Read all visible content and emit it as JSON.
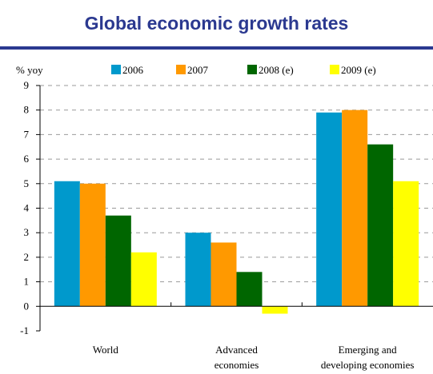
{
  "chart_data": {
    "type": "bar",
    "title": "Global economic growth rates",
    "ylabel": "% yoy",
    "xlabel": "",
    "ylim": [
      -1,
      9
    ],
    "yticks": [
      -1,
      0,
      1,
      2,
      3,
      4,
      5,
      6,
      7,
      8,
      9
    ],
    "grid": true,
    "legend_position": "top",
    "categories": [
      [
        "World"
      ],
      [
        "Advanced",
        "economies"
      ],
      [
        "Emerging and",
        "developing economies"
      ]
    ],
    "series": [
      {
        "name": "2006",
        "color": "#0099cc",
        "values": [
          5.1,
          3.0,
          7.9
        ]
      },
      {
        "name": "2007",
        "color": "#ff9900",
        "values": [
          5.0,
          2.6,
          8.0
        ]
      },
      {
        "name": "2008 (e)",
        "color": "#006600",
        "values": [
          3.7,
          1.4,
          6.6
        ]
      },
      {
        "name": "2009 (e)",
        "color": "#ffff00",
        "values": [
          2.2,
          -0.3,
          5.1
        ]
      }
    ]
  }
}
